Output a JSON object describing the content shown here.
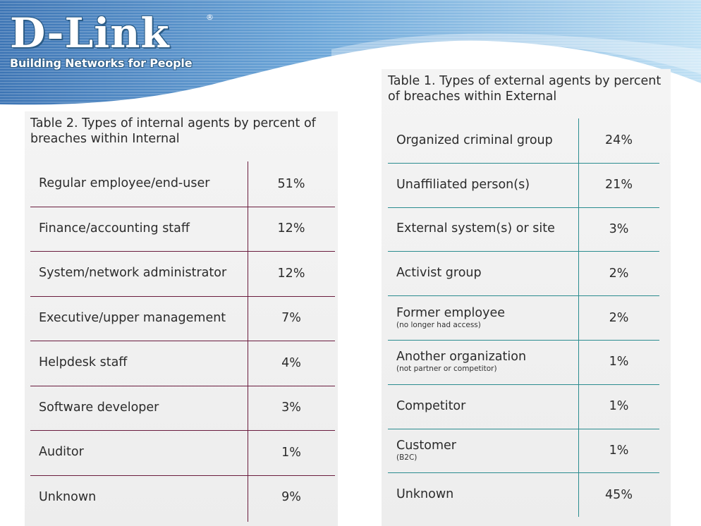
{
  "logo": {
    "word": "D-Link",
    "reg": "®",
    "tagline": "Building Networks for People"
  },
  "colors": {
    "internal_rule": "#6a1c3e",
    "external_rule": "#2a8c8f",
    "header_blue": "#3a78b8"
  },
  "internal": {
    "title": "Table 2. Types of internal agents by percent of breaches within Internal",
    "rows": [
      {
        "label": "Regular employee/end-user",
        "value": "51%"
      },
      {
        "label": "Finance/accounting staff",
        "value": "12%"
      },
      {
        "label": "System/network administrator",
        "value": "12%"
      },
      {
        "label": "Executive/upper management",
        "value": "7%"
      },
      {
        "label": "Helpdesk staff",
        "value": "4%"
      },
      {
        "label": "Software developer",
        "value": "3%"
      },
      {
        "label": "Auditor",
        "value": "1%"
      },
      {
        "label": "Unknown",
        "value": "9%"
      }
    ]
  },
  "external": {
    "title": "Table 1. Types of external agents by percent of breaches within External",
    "rows": [
      {
        "label": "Organized criminal group",
        "value": "24%"
      },
      {
        "label": "Unaffiliated person(s)",
        "value": "21%"
      },
      {
        "label": "External system(s) or site",
        "value": "3%"
      },
      {
        "label": "Activist group",
        "value": "2%"
      },
      {
        "label": "Former employee",
        "sub": "(no longer had access)",
        "value": "2%"
      },
      {
        "label": "Another organization",
        "sub": "(not partner or competitor)",
        "value": "1%"
      },
      {
        "label": "Competitor",
        "value": "1%"
      },
      {
        "label": "Customer",
        "sub": "(B2C)",
        "value": "1%"
      },
      {
        "label": "Unknown",
        "value": "45%"
      }
    ]
  }
}
